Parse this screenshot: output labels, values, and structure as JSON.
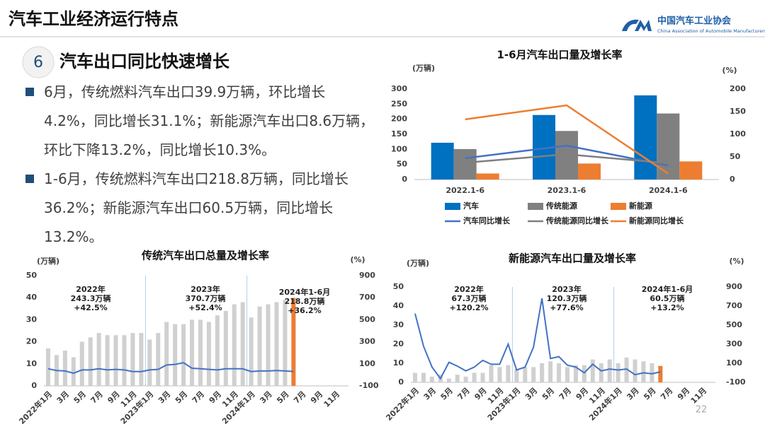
{
  "header": {
    "title": "汽车工业经济运行特点",
    "org_name": "中国汽车工业协会",
    "org_name_en": "China Association of Automobile Manufacturers"
  },
  "section": {
    "number": 6,
    "title": "汽车出口同比快速增长"
  },
  "bullets": [
    "6月，传统燃料汽车出口39.9万辆，环比增长4.2%，同比增长31.1%；新能源汽车出口8.6万辆，环比下降13.2%，同比增长10.3%。",
    "1-6月，传统燃料汽车出口218.8万辆，同比增长36.2%；新能源汽车出口60.5万辆，同比增长13.2%。"
  ],
  "page_number": 22,
  "chart_data": [
    {
      "type": "bar-line",
      "title": "1-6月汽车出口量及增长率",
      "y_label": "(万辆)",
      "y2_label": "(%)",
      "categories": [
        "2022.1-6",
        "2023.1-6",
        "2024.1-6"
      ],
      "series": [
        {
          "name": "汽车",
          "type": "bar",
          "color": "#0070c0",
          "values": [
            122,
            214,
            279
          ]
        },
        {
          "name": "传统能源",
          "type": "bar",
          "color": "#808080",
          "values": [
            101,
            161,
            219
          ]
        },
        {
          "name": "新能源",
          "type": "bar",
          "color": "#ed7d31",
          "values": [
            20,
            53,
            60
          ]
        },
        {
          "name": "汽车同比增长",
          "type": "line",
          "axis": "y2",
          "color": "#4472c4",
          "values": [
            47,
            75,
            31
          ]
        },
        {
          "name": "传统能源同比增长",
          "type": "line",
          "axis": "y2",
          "color": "#7f7f7f",
          "values": [
            37,
            56,
            36
          ]
        },
        {
          "name": "新能源同比增长",
          "type": "line",
          "axis": "y2",
          "color": "#ed7d31",
          "values": [
            133,
            164,
            13
          ]
        }
      ],
      "ylim": [
        0,
        300
      ],
      "yticks": [
        0,
        50,
        100,
        150,
        200,
        250,
        300
      ],
      "y2lim": [
        0,
        200
      ],
      "y2ticks": [
        0,
        50,
        100,
        150,
        200
      ],
      "legend": "bottom"
    },
    {
      "type": "bar-line",
      "title": "传统汽车出口总量及增长率",
      "y_label": "(万辆)",
      "y2_label": "(%)",
      "categories": [
        "2022年1月",
        null,
        "3月",
        null,
        "5月",
        null,
        "7月",
        null,
        "9月",
        null,
        "11月",
        null,
        "2023年1月",
        null,
        "3月",
        null,
        "5月",
        null,
        "7月",
        null,
        "9月",
        null,
        "11月",
        null,
        "2024年1月",
        null,
        "3月",
        null,
        "5月",
        null,
        "7月",
        null,
        "9月",
        null,
        "11月",
        null
      ],
      "series": [
        {
          "type": "bar",
          "color": "#d0d0d0",
          "values": [
            17,
            14,
            16,
            13,
            20,
            22,
            24,
            23,
            23,
            23,
            24,
            24,
            21,
            24,
            29,
            28,
            28,
            30,
            30,
            29,
            32,
            34,
            37,
            38,
            31,
            36,
            37,
            38,
            39,
            null,
            null,
            null,
            null,
            null,
            null,
            null
          ]
        },
        {
          "type": "bar",
          "color": "#ed7d31",
          "values": [
            null,
            null,
            null,
            null,
            null,
            null,
            null,
            null,
            null,
            null,
            null,
            null,
            null,
            null,
            null,
            null,
            null,
            null,
            null,
            null,
            null,
            null,
            null,
            null,
            null,
            null,
            null,
            null,
            null,
            39.9,
            null,
            null,
            null,
            null,
            null,
            null
          ]
        },
        {
          "type": "line",
          "axis": "y2",
          "color": "#4472c4",
          "values": [
            55,
            40,
            35,
            15,
            45,
            45,
            55,
            45,
            50,
            45,
            30,
            30,
            45,
            50,
            90,
            95,
            110,
            60,
            55,
            50,
            45,
            55,
            55,
            55,
            30,
            35,
            35,
            40,
            35,
            31,
            null,
            null,
            null,
            null,
            null,
            null
          ]
        }
      ],
      "ylim": [
        0,
        50
      ],
      "yticks": [
        0,
        10,
        20,
        30,
        40,
        50
      ],
      "y2lim": [
        -100,
        900
      ],
      "y2ticks": [
        -100,
        100,
        300,
        500,
        700,
        900
      ],
      "annotations": [
        [
          "2022年",
          "243.3万辆",
          "+42.5%"
        ],
        [
          "2023年",
          "370.7万辆",
          "+52.4%"
        ],
        [
          "2024年1-6月",
          "218.8万辆",
          "+36.2%"
        ]
      ]
    },
    {
      "type": "bar-line",
      "title": "新能源汽车出口量及增长率",
      "y_label": "(万辆)",
      "y2_label": "(%)",
      "categories": [
        "2022年1月",
        null,
        "3月",
        null,
        "5月",
        null,
        "7月",
        null,
        "9月",
        null,
        "11月",
        null,
        "2023年1月",
        null,
        "3月",
        null,
        "5月",
        null,
        "7月",
        null,
        "9月",
        null,
        "11月",
        null,
        "2024年1月",
        null,
        "3月",
        null,
        "5月",
        null,
        "7月",
        null,
        "9月",
        null,
        "11月",
        null
      ],
      "series": [
        {
          "type": "bar",
          "color": "#d0d0d0",
          "values": [
            5,
            5,
            3,
            4,
            2,
            4,
            3,
            5,
            5,
            9,
            8,
            9,
            7,
            8,
            8,
            10,
            11,
            10,
            8,
            9,
            9,
            12,
            10,
            12,
            10,
            13,
            12,
            11,
            10,
            null,
            null,
            null,
            null,
            null,
            null,
            null
          ]
        },
        {
          "type": "bar",
          "color": "#ed7d31",
          "values": [
            null,
            null,
            null,
            null,
            null,
            null,
            null,
            null,
            null,
            null,
            null,
            null,
            null,
            null,
            null,
            null,
            null,
            null,
            null,
            null,
            null,
            null,
            null,
            null,
            null,
            null,
            null,
            null,
            null,
            8.6,
            null,
            null,
            null,
            null,
            null,
            null
          ]
        },
        {
          "type": "line",
          "axis": "y2",
          "color": "#4472c4",
          "values": [
            620,
            280,
            60,
            -60,
            110,
            70,
            20,
            60,
            130,
            90,
            90,
            300,
            30,
            60,
            270,
            780,
            150,
            170,
            80,
            60,
            0,
            90,
            20,
            40,
            30,
            40,
            -20,
            0,
            -10,
            10,
            null,
            null,
            null,
            null,
            null,
            null
          ]
        }
      ],
      "ylim": [
        0,
        50
      ],
      "yticks": [
        0,
        10,
        20,
        30,
        40,
        50
      ],
      "y2lim": [
        -100,
        900
      ],
      "y2ticks": [
        -100,
        100,
        300,
        500,
        700,
        900
      ],
      "annotations": [
        [
          "2022年",
          "67.3万辆",
          "+120.2%"
        ],
        [
          "2023年",
          "120.3万辆",
          "+77.6%"
        ],
        [
          "2024年1-6月",
          "60.5万辆",
          "+13.2%"
        ]
      ]
    }
  ]
}
